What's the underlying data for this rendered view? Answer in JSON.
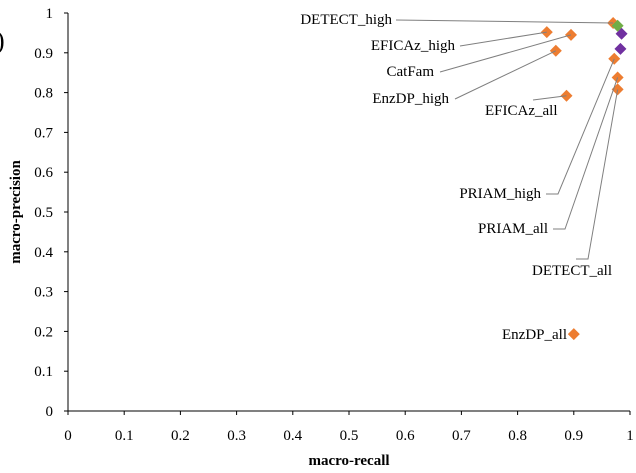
{
  "panel_label": ")",
  "chart_data": {
    "type": "scatter",
    "title": "",
    "xlabel": "macro-recall",
    "ylabel": "macro-precision",
    "xlim": [
      0,
      1
    ],
    "ylim": [
      0,
      1
    ],
    "xticks": [
      "0",
      "0.1",
      "0.2",
      "0.3",
      "0.4",
      "0.5",
      "0.6",
      "0.7",
      "0.8",
      "0.9",
      "1"
    ],
    "yticks": [
      "0",
      "0.1",
      "0.2",
      "0.3",
      "0.4",
      "0.5",
      "0.6",
      "0.7",
      "0.8",
      "0.9",
      "1"
    ],
    "grid": false,
    "colors": {
      "orange": "#ed7d31",
      "purple": "#7030a0",
      "green": "#70ad47"
    },
    "series": [
      {
        "color": "#ed7d31",
        "points": [
          {
            "x": 0.97,
            "y": 0.975
          },
          {
            "x": 0.852,
            "y": 0.952
          },
          {
            "x": 0.895,
            "y": 0.945
          },
          {
            "x": 0.868,
            "y": 0.905
          },
          {
            "x": 0.887,
            "y": 0.792
          },
          {
            "x": 0.972,
            "y": 0.885
          },
          {
            "x": 0.978,
            "y": 0.838
          },
          {
            "x": 0.978,
            "y": 0.808
          },
          {
            "x": 0.9,
            "y": 0.193
          }
        ]
      },
      {
        "color": "#7030a0",
        "points": [
          {
            "x": 0.985,
            "y": 0.948
          },
          {
            "x": 0.983,
            "y": 0.91
          }
        ]
      },
      {
        "color": "#70ad47",
        "points": [
          {
            "x": 0.978,
            "y": 0.968
          }
        ]
      }
    ],
    "annotations": [
      {
        "text": "DETECT_high",
        "point": [
          0.97,
          0.975
        ]
      },
      {
        "text": "EFICAz_high",
        "point": [
          0.852,
          0.952
        ]
      },
      {
        "text": "CatFam",
        "point": [
          0.895,
          0.945
        ]
      },
      {
        "text": "EnzDP_high",
        "point": [
          0.868,
          0.905
        ]
      },
      {
        "text": "EFICAz_all",
        "point": [
          0.887,
          0.792
        ]
      },
      {
        "text": "PRIAM_high",
        "point": [
          0.972,
          0.885
        ]
      },
      {
        "text": "PRIAM_all",
        "point": [
          0.978,
          0.838
        ]
      },
      {
        "text": "DETECT_all",
        "point": [
          0.978,
          0.808
        ]
      },
      {
        "text": "EnzDP_all",
        "point": [
          0.9,
          0.193
        ]
      }
    ]
  }
}
